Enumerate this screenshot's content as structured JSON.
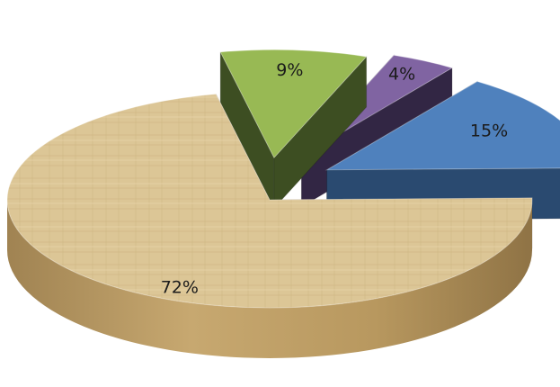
{
  "chart_data": {
    "type": "pie",
    "title": "",
    "categories": [
      "",
      "",
      "",
      ""
    ],
    "values": [
      72,
      9,
      4,
      15
    ],
    "labels": [
      "72%",
      "9%",
      "4%",
      "15%"
    ],
    "colors": [
      "#d8c08e",
      "#98b954",
      "#8064a2",
      "#4f81bd"
    ],
    "style": "3d-exploded",
    "legend": "none"
  }
}
